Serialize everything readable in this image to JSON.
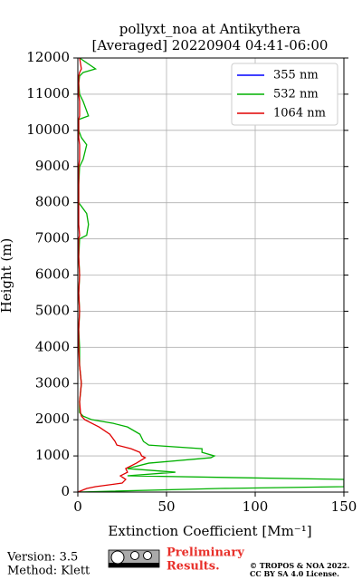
{
  "chart_data": {
    "type": "line",
    "title": [
      "pollyxt_noa at Antikythera",
      "[Averaged] 20220904 04:41-06:00"
    ],
    "xlabel": "Extinction Coefficient [Mm⁻¹]",
    "ylabel": "Height (m)",
    "y": [
      0,
      100,
      150,
      250,
      350,
      450,
      550,
      650,
      800,
      950,
      1000,
      1100,
      1200,
      1300,
      1400,
      1600,
      1800,
      1900,
      2000,
      2100,
      2200,
      2500,
      3000,
      3500,
      4000,
      4500,
      5000,
      5500,
      6000,
      6500,
      7000,
      7100,
      7400,
      7700,
      8000,
      8500,
      9000,
      9200,
      9600,
      9800,
      10000,
      10300,
      10400,
      10800,
      11000,
      11300,
      11500,
      11600,
      11700,
      12000
    ],
    "series": [
      {
        "name": "355 nm",
        "color": "#0000ff",
        "values": [
          null,
          null,
          null,
          null,
          null,
          null,
          null,
          null,
          null,
          null,
          null,
          null,
          null,
          null,
          null,
          null,
          null,
          null,
          null,
          null,
          null,
          null,
          null,
          null,
          null,
          null,
          null,
          null,
          null,
          null,
          null,
          null,
          null,
          null,
          null,
          null,
          null,
          null,
          null,
          null,
          null,
          null,
          null,
          null,
          null,
          null,
          null,
          null,
          null,
          null
        ]
      },
      {
        "name": "532 nm",
        "color": "#00b000",
        "values": [
          0,
          80,
          150,
          150,
          150,
          28,
          55,
          28,
          40,
          75,
          77,
          70,
          70,
          40,
          37,
          35,
          28,
          20,
          8,
          3,
          1,
          1,
          2,
          1,
          1,
          0.5,
          1,
          0.5,
          1,
          0.5,
          1,
          5,
          6,
          5,
          0.5,
          0.5,
          1,
          3,
          5,
          2,
          0.5,
          0.5,
          6,
          3,
          1,
          0.5,
          1,
          3,
          10,
          1
        ]
      },
      {
        "name": "1064 nm",
        "color": "#e00000",
        "values": [
          0,
          5,
          10,
          25,
          27,
          24,
          28,
          27,
          33,
          38,
          36,
          35,
          30,
          22,
          21,
          18,
          12,
          8,
          4,
          2,
          1.5,
          1,
          2,
          1,
          0.5,
          0.5,
          1,
          0.5,
          1,
          0.5,
          0.5,
          1,
          0.5,
          0.5,
          0.5,
          0.5,
          0.5,
          1,
          1,
          0.5,
          0.5,
          0.5,
          1,
          1,
          0.5,
          0.5,
          0.5,
          1,
          2,
          1
        ]
      }
    ],
    "xlim": [
      0,
      150
    ],
    "xticks": [
      0,
      50,
      100,
      150
    ],
    "ylim": [
      0,
      12000
    ],
    "yticks": [
      0,
      1000,
      2000,
      3000,
      4000,
      5000,
      6000,
      7000,
      8000,
      9000,
      10000,
      11000,
      12000
    ],
    "grid": true,
    "legend": "upper right"
  },
  "footer": {
    "version": "Version: 3.5",
    "method": "Method: Klett",
    "preliminary": [
      "Preliminary",
      "Results."
    ],
    "copyright": [
      "© TROPOS & NOA 2022.",
      "CC BY SA 4.0 License."
    ]
  }
}
